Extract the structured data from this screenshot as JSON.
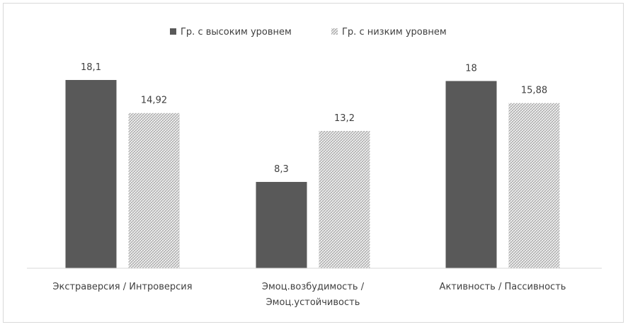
{
  "chart_data": {
    "type": "bar",
    "categories": [
      [
        "Экстраверсия / Интроверсия"
      ],
      [
        "Эмоц.возбудимость /",
        "Эмоц.устойчивость"
      ],
      [
        "Активность / Пассивность"
      ]
    ],
    "series": [
      {
        "name": "Гр. с высоким уровнем",
        "values": [
          18.1,
          8.3,
          18
        ],
        "labels": [
          "18,1",
          "8,3",
          "18"
        ],
        "color": "#595959",
        "pattern": "solid"
      },
      {
        "name": "Гр. с низким уровнем",
        "values": [
          14.92,
          13.2,
          15.88
        ],
        "labels": [
          "14,92",
          "13,2",
          "15,88"
        ],
        "color": "#a6a6a6",
        "pattern": "hatched"
      }
    ],
    "ylim": [
      0,
      20
    ],
    "grid": false,
    "legend": "top-center",
    "title": "",
    "xlabel": "",
    "ylabel": ""
  }
}
